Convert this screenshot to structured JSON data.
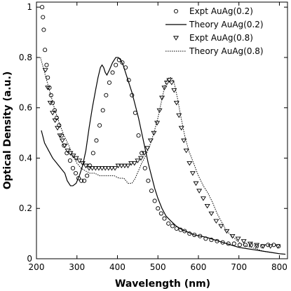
{
  "chart_data": {
    "type": "line",
    "title": "",
    "xlabel": "Wavelength (nm)",
    "ylabel": "Optical Density (a.u.)",
    "xlim": [
      200,
      820
    ],
    "ylim": [
      0,
      1.02
    ],
    "xticks": [
      200,
      300,
      400,
      500,
      600,
      700,
      800
    ],
    "yticks": [
      0,
      0.2,
      0.4,
      0.6,
      0.8,
      1
    ],
    "xtick_labels": [
      "200",
      "300",
      "400",
      "500",
      "600",
      "700",
      "800"
    ],
    "ytick_labels": [
      "0",
      "0.2",
      "0.4",
      "0.6",
      "0.8",
      "1"
    ],
    "grid": false,
    "legend_position": "top-right",
    "series": [
      {
        "name": "Expt AuAg(0.2)",
        "style": "circle-markers",
        "color": "#000000",
        "x": [
          214,
          216,
          218,
          221,
          225,
          228,
          232,
          236,
          240,
          245,
          250,
          256,
          262,
          268,
          275,
          283,
          290,
          297,
          304,
          311,
          318,
          325,
          332,
          340,
          348,
          356,
          364,
          372,
          380,
          388,
          396,
          404,
          412,
          420,
          428,
          436,
          444,
          452,
          460,
          468,
          476,
          484,
          492,
          500,
          508,
          516,
          526,
          536,
          546,
          556,
          566,
          578,
          590,
          604,
          618,
          632,
          646,
          660,
          674,
          688,
          702,
          716,
          730,
          744,
          758,
          772,
          786,
          798
        ],
        "y": [
          1.0,
          0.96,
          0.91,
          0.83,
          0.77,
          0.72,
          0.68,
          0.65,
          0.62,
          0.59,
          0.56,
          0.53,
          0.49,
          0.45,
          0.42,
          0.39,
          0.36,
          0.34,
          0.32,
          0.31,
          0.31,
          0.33,
          0.37,
          0.42,
          0.47,
          0.53,
          0.59,
          0.65,
          0.7,
          0.74,
          0.77,
          0.79,
          0.78,
          0.76,
          0.71,
          0.65,
          0.58,
          0.49,
          0.42,
          0.36,
          0.31,
          0.27,
          0.23,
          0.2,
          0.18,
          0.16,
          0.14,
          0.13,
          0.12,
          0.115,
          0.11,
          0.1,
          0.095,
          0.09,
          0.08,
          0.075,
          0.07,
          0.065,
          0.06,
          0.06,
          0.055,
          0.055,
          0.055,
          0.05,
          0.05,
          0.055,
          0.055,
          0.05
        ]
      },
      {
        "name": "Theory AuAg(0.2)",
        "style": "solid",
        "color": "#000000",
        "x": [
          212,
          220,
          230,
          240,
          250,
          260,
          270,
          276,
          284,
          290,
          298,
          306,
          314,
          322,
          330,
          338,
          346,
          352,
          358,
          362,
          366,
          370,
          374,
          380,
          388,
          396,
          402,
          408,
          414,
          420,
          428,
          436,
          444,
          452,
          460,
          468,
          476,
          484,
          492,
          500,
          510,
          520,
          532,
          545,
          560,
          575,
          590,
          605,
          620,
          640,
          660,
          680,
          700,
          720,
          740,
          760,
          780,
          800,
          815
        ],
        "y": [
          0.51,
          0.46,
          0.43,
          0.4,
          0.38,
          0.36,
          0.34,
          0.31,
          0.29,
          0.29,
          0.3,
          0.33,
          0.37,
          0.43,
          0.52,
          0.6,
          0.67,
          0.72,
          0.76,
          0.77,
          0.76,
          0.74,
          0.73,
          0.75,
          0.78,
          0.8,
          0.8,
          0.79,
          0.77,
          0.74,
          0.7,
          0.66,
          0.61,
          0.56,
          0.5,
          0.44,
          0.38,
          0.33,
          0.28,
          0.24,
          0.2,
          0.17,
          0.15,
          0.13,
          0.115,
          0.105,
          0.095,
          0.09,
          0.085,
          0.075,
          0.065,
          0.055,
          0.045,
          0.04,
          0.035,
          0.03,
          0.025,
          0.02,
          0.018
        ]
      },
      {
        "name": "Expt AuAg(0.8)",
        "style": "triangle-markers",
        "color": "#000000",
        "x": [
          222,
          228,
          234,
          240,
          246,
          252,
          258,
          264,
          270,
          277,
          284,
          291,
          298,
          306,
          314,
          322,
          330,
          338,
          346,
          354,
          362,
          370,
          378,
          386,
          394,
          402,
          410,
          418,
          426,
          434,
          442,
          450,
          458,
          466,
          474,
          482,
          490,
          498,
          504,
          510,
          516,
          522,
          528,
          534,
          540,
          546,
          552,
          558,
          564,
          570,
          578,
          586,
          594,
          602,
          612,
          622,
          632,
          644,
          656,
          670,
          684,
          698,
          712,
          728,
          744,
          760,
          778,
          796
        ],
        "y": [
          0.75,
          0.68,
          0.62,
          0.58,
          0.55,
          0.52,
          0.49,
          0.47,
          0.45,
          0.43,
          0.42,
          0.41,
          0.4,
          0.39,
          0.38,
          0.37,
          0.36,
          0.36,
          0.36,
          0.36,
          0.36,
          0.36,
          0.36,
          0.36,
          0.36,
          0.37,
          0.37,
          0.37,
          0.37,
          0.38,
          0.38,
          0.39,
          0.4,
          0.42,
          0.44,
          0.47,
          0.5,
          0.54,
          0.59,
          0.64,
          0.68,
          0.7,
          0.71,
          0.7,
          0.67,
          0.62,
          0.57,
          0.52,
          0.47,
          0.43,
          0.38,
          0.34,
          0.3,
          0.27,
          0.24,
          0.21,
          0.18,
          0.15,
          0.13,
          0.11,
          0.09,
          0.08,
          0.07,
          0.06,
          0.055,
          0.05,
          0.05,
          0.05
        ]
      },
      {
        "name": "Theory AuAg(0.8)",
        "style": "dotted",
        "color": "#000000",
        "x": [
          210,
          220,
          232,
          244,
          256,
          268,
          280,
          290,
          300,
          310,
          320,
          332,
          344,
          356,
          368,
          380,
          392,
          404,
          416,
          426,
          436,
          444,
          452,
          460,
          470,
          480,
          490,
          500,
          508,
          516,
          522,
          528,
          534,
          540,
          548,
          556,
          566,
          576,
          588,
          600,
          612,
          624,
          636,
          646,
          656,
          666,
          676,
          690,
          704,
          720,
          740,
          760,
          780,
          800,
          815
        ],
        "y": [
          0.8,
          0.74,
          0.67,
          0.6,
          0.54,
          0.49,
          0.45,
          0.41,
          0.38,
          0.36,
          0.35,
          0.34,
          0.34,
          0.33,
          0.33,
          0.33,
          0.33,
          0.32,
          0.32,
          0.3,
          0.3,
          0.32,
          0.35,
          0.38,
          0.41,
          0.45,
          0.5,
          0.56,
          0.62,
          0.68,
          0.71,
          0.72,
          0.72,
          0.7,
          0.64,
          0.57,
          0.49,
          0.43,
          0.38,
          0.33,
          0.29,
          0.26,
          0.22,
          0.18,
          0.15,
          0.12,
          0.1,
          0.08,
          0.06,
          0.05,
          0.04,
          0.03,
          0.025,
          0.02,
          0.018
        ]
      }
    ]
  }
}
